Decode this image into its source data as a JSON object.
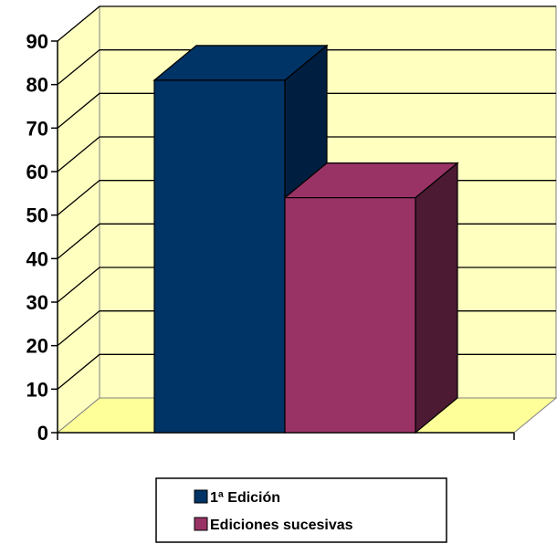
{
  "chart_data": {
    "type": "bar",
    "title": "",
    "xlabel": "",
    "ylabel": "",
    "ylim": [
      0,
      90
    ],
    "yticks": [
      0,
      10,
      20,
      30,
      40,
      50,
      60,
      70,
      80,
      90
    ],
    "grid": true,
    "three_d": true,
    "legend_position": "bottom",
    "series": [
      {
        "name": "1ª Edición",
        "values": [
          81
        ],
        "color": "#003366",
        "side_color": "#001f40"
      },
      {
        "name": "Ediciones sucesivas",
        "values": [
          54
        ],
        "color": "#993366",
        "side_color": "#4d1a33"
      }
    ],
    "colors": {
      "wall": "#ffffc0",
      "floor": "#ffff99",
      "axis": "#000000"
    }
  }
}
